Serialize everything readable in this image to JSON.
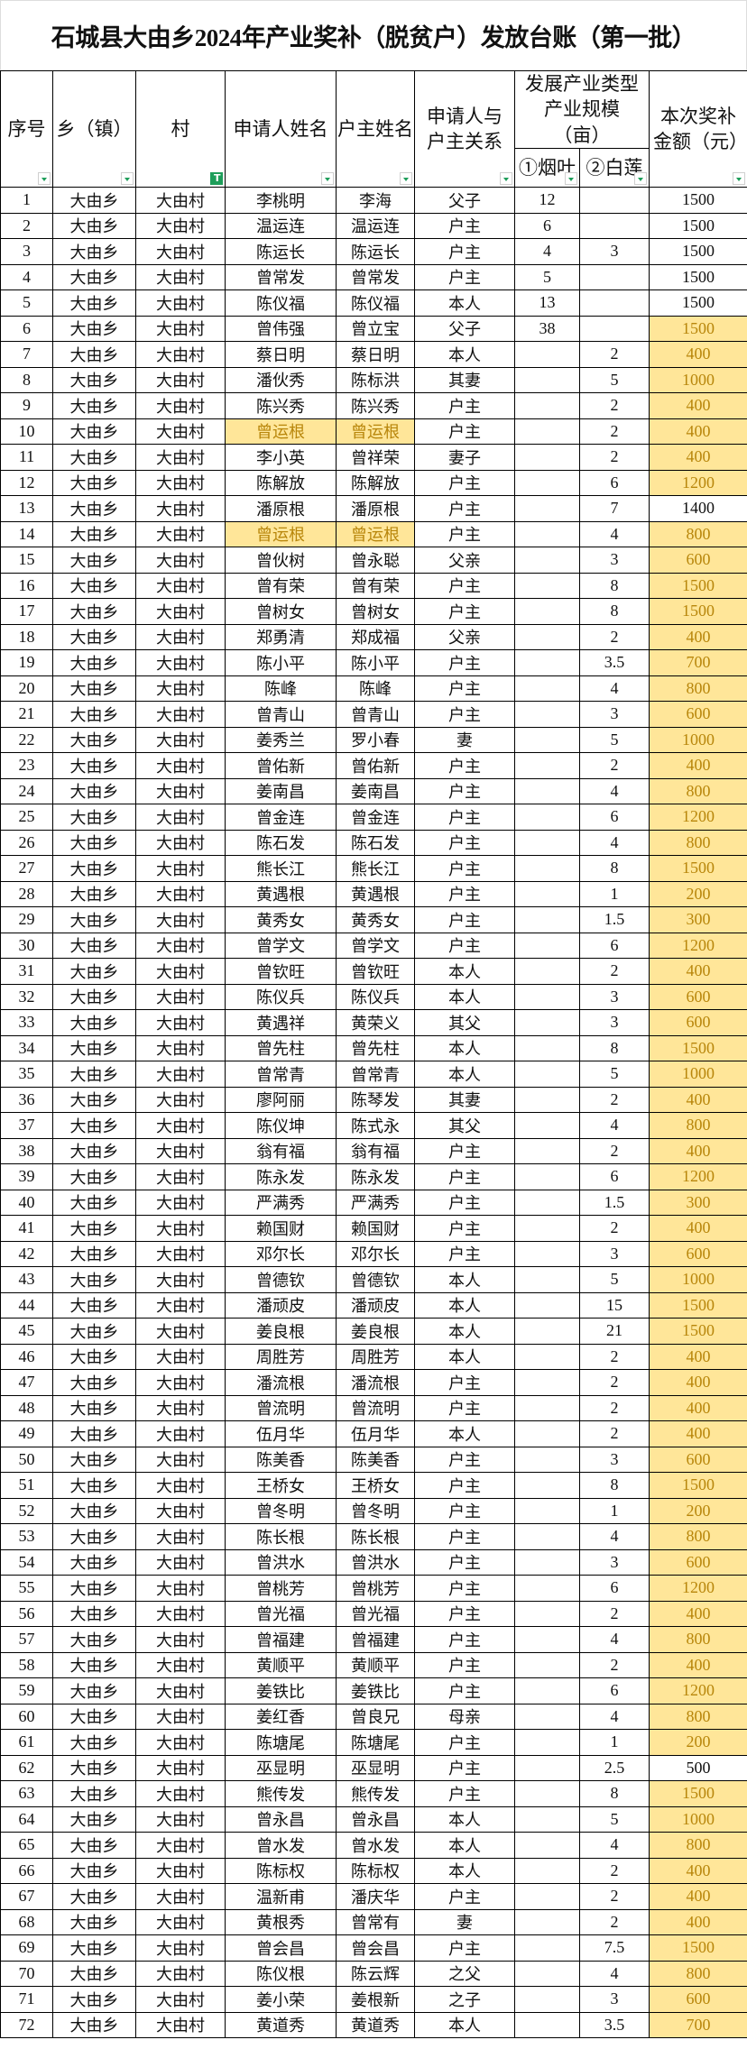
{
  "title": "石城县大由乡2024年产业奖补（脱贫户）发放台账（第一批）",
  "headers": {
    "seq": "序号",
    "town": "乡（镇）",
    "village": "村",
    "applicant": "申请人姓名",
    "household_head": "户主姓名",
    "relation": "申请人与户主关系",
    "industry_group": "发展产业类型产业规模（亩）",
    "tobacco": "①烟叶",
    "lotus": "②白莲",
    "amount": "本次奖补金额（元）"
  },
  "colors": {
    "highlight_bg": "#ffe699",
    "highlight_text": "#b8860b",
    "filter_icon": "#1e9e5a"
  },
  "filter_active_column": "village",
  "highlighted_amount_rows": [
    6,
    7,
    8,
    9,
    10,
    11,
    12,
    14,
    15,
    16,
    17,
    18,
    19,
    20,
    21,
    22,
    23,
    24,
    25,
    26,
    27,
    28,
    29,
    30,
    31,
    32,
    33,
    34,
    35,
    36,
    37,
    38,
    39,
    40,
    41,
    42,
    43,
    44,
    45,
    46,
    47,
    48,
    49,
    50,
    51,
    52,
    53,
    54,
    55,
    56,
    57,
    58,
    59,
    60,
    61,
    63,
    64,
    65,
    66,
    67,
    68,
    69,
    70,
    71,
    72
  ],
  "highlighted_name_rows": [
    10,
    14
  ],
  "rows": [
    [
      "1",
      "大由乡",
      "大由村",
      "李桃明",
      "李海",
      "父子",
      "12",
      "",
      "1500"
    ],
    [
      "2",
      "大由乡",
      "大由村",
      "温运连",
      "温运连",
      "户主",
      "6",
      "",
      "1500"
    ],
    [
      "3",
      "大由乡",
      "大由村",
      "陈运长",
      "陈运长",
      "户主",
      "4",
      "3",
      "1500"
    ],
    [
      "4",
      "大由乡",
      "大由村",
      "曾常发",
      "曾常发",
      "户主",
      "5",
      "",
      "1500"
    ],
    [
      "5",
      "大由乡",
      "大由村",
      "陈仪福",
      "陈仪福",
      "本人",
      "13",
      "",
      "1500"
    ],
    [
      "6",
      "大由乡",
      "大由村",
      "曾伟强",
      "曾立宝",
      "父子",
      "38",
      "",
      "1500"
    ],
    [
      "7",
      "大由乡",
      "大由村",
      "蔡日明",
      "蔡日明",
      "本人",
      "",
      "2",
      "400"
    ],
    [
      "8",
      "大由乡",
      "大由村",
      "潘伙秀",
      "陈标洪",
      "其妻",
      "",
      "5",
      "1000"
    ],
    [
      "9",
      "大由乡",
      "大由村",
      "陈兴秀",
      "陈兴秀",
      "户主",
      "",
      "2",
      "400"
    ],
    [
      "10",
      "大由乡",
      "大由村",
      "曾运根",
      "曾运根",
      "户主",
      "",
      "2",
      "400"
    ],
    [
      "11",
      "大由乡",
      "大由村",
      "李小英",
      "曾祥荣",
      "妻子",
      "",
      "2",
      "400"
    ],
    [
      "12",
      "大由乡",
      "大由村",
      "陈解放",
      "陈解放",
      "户主",
      "",
      "6",
      "1200"
    ],
    [
      "13",
      "大由乡",
      "大由村",
      "潘原根",
      "潘原根",
      "户主",
      "",
      "7",
      "1400"
    ],
    [
      "14",
      "大由乡",
      "大由村",
      "曾运根",
      "曾运根",
      "户主",
      "",
      "4",
      "800"
    ],
    [
      "15",
      "大由乡",
      "大由村",
      "曾伙树",
      "曾永聪",
      "父亲",
      "",
      "3",
      "600"
    ],
    [
      "16",
      "大由乡",
      "大由村",
      "曾有荣",
      "曾有荣",
      "户主",
      "",
      "8",
      "1500"
    ],
    [
      "17",
      "大由乡",
      "大由村",
      "曾树女",
      "曾树女",
      "户主",
      "",
      "8",
      "1500"
    ],
    [
      "18",
      "大由乡",
      "大由村",
      "郑勇清",
      "郑成福",
      "父亲",
      "",
      "2",
      "400"
    ],
    [
      "19",
      "大由乡",
      "大由村",
      "陈小平",
      "陈小平",
      "户主",
      "",
      "3.5",
      "700"
    ],
    [
      "20",
      "大由乡",
      "大由村",
      "陈峰",
      "陈峰",
      "户主",
      "",
      "4",
      "800"
    ],
    [
      "21",
      "大由乡",
      "大由村",
      "曾青山",
      "曾青山",
      "户主",
      "",
      "3",
      "600"
    ],
    [
      "22",
      "大由乡",
      "大由村",
      "姜秀兰",
      "罗小春",
      "妻",
      "",
      "5",
      "1000"
    ],
    [
      "23",
      "大由乡",
      "大由村",
      "曾佑新",
      "曾佑新",
      "户主",
      "",
      "2",
      "400"
    ],
    [
      "24",
      "大由乡",
      "大由村",
      "姜南昌",
      "姜南昌",
      "户主",
      "",
      "4",
      "800"
    ],
    [
      "25",
      "大由乡",
      "大由村",
      "曾金连",
      "曾金连",
      "户主",
      "",
      "6",
      "1200"
    ],
    [
      "26",
      "大由乡",
      "大由村",
      "陈石发",
      "陈石发",
      "户主",
      "",
      "4",
      "800"
    ],
    [
      "27",
      "大由乡",
      "大由村",
      "熊长江",
      "熊长江",
      "户主",
      "",
      "8",
      "1500"
    ],
    [
      "28",
      "大由乡",
      "大由村",
      "黄遇根",
      "黄遇根",
      "户主",
      "",
      "1",
      "200"
    ],
    [
      "29",
      "大由乡",
      "大由村",
      "黄秀女",
      "黄秀女",
      "户主",
      "",
      "1.5",
      "300"
    ],
    [
      "30",
      "大由乡",
      "大由村",
      "曾学文",
      "曾学文",
      "户主",
      "",
      "6",
      "1200"
    ],
    [
      "31",
      "大由乡",
      "大由村",
      "曾钦旺",
      "曾钦旺",
      "本人",
      "",
      "2",
      "400"
    ],
    [
      "32",
      "大由乡",
      "大由村",
      "陈仪兵",
      "陈仪兵",
      "本人",
      "",
      "3",
      "600"
    ],
    [
      "33",
      "大由乡",
      "大由村",
      "黄遇祥",
      "黄荣义",
      "其父",
      "",
      "3",
      "600"
    ],
    [
      "34",
      "大由乡",
      "大由村",
      "曾先柱",
      "曾先柱",
      "本人",
      "",
      "8",
      "1500"
    ],
    [
      "35",
      "大由乡",
      "大由村",
      "曾常青",
      "曾常青",
      "本人",
      "",
      "5",
      "1000"
    ],
    [
      "36",
      "大由乡",
      "大由村",
      "廖阿丽",
      "陈琴发",
      "其妻",
      "",
      "2",
      "400"
    ],
    [
      "37",
      "大由乡",
      "大由村",
      "陈仪坤",
      "陈式永",
      "其父",
      "",
      "4",
      "800"
    ],
    [
      "38",
      "大由乡",
      "大由村",
      "翁有福",
      "翁有福",
      "户主",
      "",
      "2",
      "400"
    ],
    [
      "39",
      "大由乡",
      "大由村",
      "陈永发",
      "陈永发",
      "户主",
      "",
      "6",
      "1200"
    ],
    [
      "40",
      "大由乡",
      "大由村",
      "严满秀",
      "严满秀",
      "户主",
      "",
      "1.5",
      "300"
    ],
    [
      "41",
      "大由乡",
      "大由村",
      "赖国财",
      "赖国财",
      "户主",
      "",
      "2",
      "400"
    ],
    [
      "42",
      "大由乡",
      "大由村",
      "邓尔长",
      "邓尔长",
      "户主",
      "",
      "3",
      "600"
    ],
    [
      "43",
      "大由乡",
      "大由村",
      "曾德钦",
      "曾德钦",
      "本人",
      "",
      "5",
      "1000"
    ],
    [
      "44",
      "大由乡",
      "大由村",
      "潘顽皮",
      "潘顽皮",
      "本人",
      "",
      "15",
      "1500"
    ],
    [
      "45",
      "大由乡",
      "大由村",
      "姜良根",
      "姜良根",
      "本人",
      "",
      "21",
      "1500"
    ],
    [
      "46",
      "大由乡",
      "大由村",
      "周胜芳",
      "周胜芳",
      "本人",
      "",
      "2",
      "400"
    ],
    [
      "47",
      "大由乡",
      "大由村",
      "潘流根",
      "潘流根",
      "户主",
      "",
      "2",
      "400"
    ],
    [
      "48",
      "大由乡",
      "大由村",
      "曾流明",
      "曾流明",
      "户主",
      "",
      "2",
      "400"
    ],
    [
      "49",
      "大由乡",
      "大由村",
      "伍月华",
      "伍月华",
      "本人",
      "",
      "2",
      "400"
    ],
    [
      "50",
      "大由乡",
      "大由村",
      "陈美香",
      "陈美香",
      "户主",
      "",
      "3",
      "600"
    ],
    [
      "51",
      "大由乡",
      "大由村",
      "王桥女",
      "王桥女",
      "户主",
      "",
      "8",
      "1500"
    ],
    [
      "52",
      "大由乡",
      "大由村",
      "曾冬明",
      "曾冬明",
      "户主",
      "",
      "1",
      "200"
    ],
    [
      "53",
      "大由乡",
      "大由村",
      "陈长根",
      "陈长根",
      "户主",
      "",
      "4",
      "800"
    ],
    [
      "54",
      "大由乡",
      "大由村",
      "曾洪水",
      "曾洪水",
      "户主",
      "",
      "3",
      "600"
    ],
    [
      "55",
      "大由乡",
      "大由村",
      "曾桃芳",
      "曾桃芳",
      "户主",
      "",
      "6",
      "1200"
    ],
    [
      "56",
      "大由乡",
      "大由村",
      "曾光福",
      "曾光福",
      "户主",
      "",
      "2",
      "400"
    ],
    [
      "57",
      "大由乡",
      "大由村",
      "曾福建",
      "曾福建",
      "户主",
      "",
      "4",
      "800"
    ],
    [
      "58",
      "大由乡",
      "大由村",
      "黄顺平",
      "黄顺平",
      "户主",
      "",
      "2",
      "400"
    ],
    [
      "59",
      "大由乡",
      "大由村",
      "姜铁比",
      "姜铁比",
      "户主",
      "",
      "6",
      "1200"
    ],
    [
      "60",
      "大由乡",
      "大由村",
      "姜红香",
      "曾良兄",
      "母亲",
      "",
      "4",
      "800"
    ],
    [
      "61",
      "大由乡",
      "大由村",
      "陈塘尾",
      "陈塘尾",
      "户主",
      "",
      "1",
      "200"
    ],
    [
      "62",
      "大由乡",
      "大由村",
      "巫显明",
      "巫显明",
      "户主",
      "",
      "2.5",
      "500"
    ],
    [
      "63",
      "大由乡",
      "大由村",
      "熊传发",
      "熊传发",
      "户主",
      "",
      "8",
      "1500"
    ],
    [
      "64",
      "大由乡",
      "大由村",
      "曾永昌",
      "曾永昌",
      "本人",
      "",
      "5",
      "1000"
    ],
    [
      "65",
      "大由乡",
      "大由村",
      "曾水发",
      "曾水发",
      "本人",
      "",
      "4",
      "800"
    ],
    [
      "66",
      "大由乡",
      "大由村",
      "陈标权",
      "陈标权",
      "本人",
      "",
      "2",
      "400"
    ],
    [
      "67",
      "大由乡",
      "大由村",
      "温新甫",
      "潘庆华",
      "户主",
      "",
      "2",
      "400"
    ],
    [
      "68",
      "大由乡",
      "大由村",
      "黄根秀",
      "曾常有",
      "妻",
      "",
      "2",
      "400"
    ],
    [
      "69",
      "大由乡",
      "大由村",
      "曾会昌",
      "曾会昌",
      "户主",
      "",
      "7.5",
      "1500"
    ],
    [
      "70",
      "大由乡",
      "大由村",
      "陈仪根",
      "陈云辉",
      "之父",
      "",
      "4",
      "800"
    ],
    [
      "71",
      "大由乡",
      "大由村",
      "姜小荣",
      "姜根新",
      "之子",
      "",
      "3",
      "600"
    ],
    [
      "72",
      "大由乡",
      "大由村",
      "黄道秀",
      "黄道秀",
      "本人",
      "",
      "3.5",
      "700"
    ]
  ]
}
